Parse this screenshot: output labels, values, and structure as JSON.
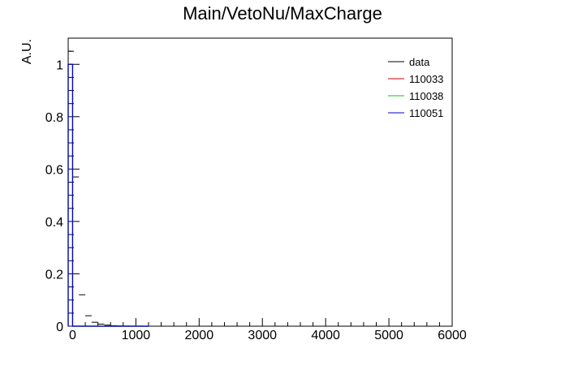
{
  "chart_data": {
    "type": "histogram",
    "title": "Main/VetoNu/MaxCharge",
    "xlabel": "",
    "ylabel": "A.U.",
    "xlim": [
      -70,
      6000
    ],
    "ylim": [
      0,
      1.1
    ],
    "x_ticks": [
      0,
      1000,
      2000,
      3000,
      4000,
      5000,
      6000
    ],
    "y_ticks": [
      0,
      0.2,
      0.4,
      0.6,
      0.8,
      1
    ],
    "x_tick_labels": [
      "0",
      "1000",
      "2000",
      "3000",
      "4000",
      "5000",
      "6000"
    ],
    "y_tick_labels": [
      "0",
      "0.2",
      "0.4",
      "0.6",
      "0.8",
      "1"
    ],
    "legend_position": "top-right",
    "bin_width": 100,
    "series": [
      {
        "name": "data",
        "color": "#000000",
        "style": "points",
        "x": [
          -50,
          50,
          150,
          250,
          350,
          450,
          550,
          650,
          750,
          850
        ],
        "values": [
          1.05,
          0.57,
          0.12,
          0.04,
          0.015,
          0.008,
          0.004,
          0.002,
          0.001,
          0.0005
        ]
      },
      {
        "name": "110033",
        "color": "#cc0000",
        "style": "histogram",
        "x": [
          -50,
          50,
          150,
          250,
          350,
          450,
          550,
          650,
          750,
          850,
          950,
          1050,
          1150
        ],
        "values": [
          1.0,
          0.0,
          0.0,
          0.0,
          0.0,
          0.0,
          0.0,
          0.0,
          0.0,
          0.0,
          0.0,
          0.0,
          0.0
        ]
      },
      {
        "name": "110038",
        "color": "#00cc00",
        "style": "histogram",
        "x": [
          -50,
          50,
          150,
          250,
          350,
          450,
          550,
          650,
          750,
          850,
          950,
          1050,
          1150
        ],
        "values": [
          1.0,
          0.0,
          0.0,
          0.0,
          0.0,
          0.0,
          0.0,
          0.0,
          0.0,
          0.0,
          0.0,
          0.0,
          0.0
        ]
      },
      {
        "name": "110051",
        "color": "#0000cc",
        "style": "histogram",
        "x": [
          -50,
          50,
          150,
          250,
          350,
          450,
          550,
          650,
          750,
          850,
          950,
          1050,
          1150
        ],
        "values": [
          1.0,
          0.0,
          0.0,
          0.0,
          0.0,
          0.0,
          0.0,
          0.0,
          0.0,
          0.0,
          0.0,
          0.0,
          0.0
        ]
      }
    ]
  }
}
